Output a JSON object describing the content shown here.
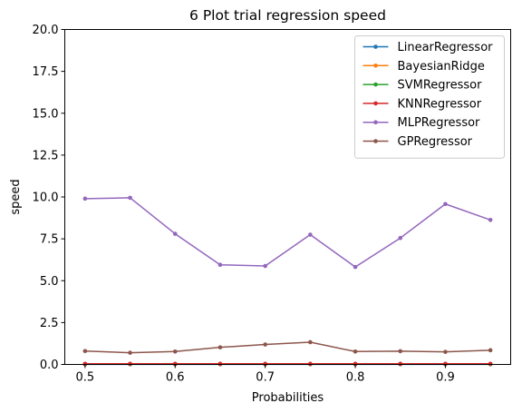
{
  "chart_data": {
    "type": "line",
    "title": "6 Plot trial regression speed",
    "xlabel": "Probabilities",
    "ylabel": "speed",
    "xlim": [
      0.4775,
      0.9725
    ],
    "ylim": [
      0,
      20
    ],
    "xticks": [
      0.5,
      0.6,
      0.7,
      0.8,
      0.9
    ],
    "xtick_labels": [
      "0.5",
      "0.6",
      "0.7",
      "0.8",
      "0.9"
    ],
    "yticks": [
      0,
      2.5,
      5,
      7.5,
      10,
      12.5,
      15,
      17.5,
      20
    ],
    "ytick_labels": [
      "0.0",
      "2.5",
      "5.0",
      "7.5",
      "10.0",
      "12.5",
      "15.0",
      "17.5",
      "20.0"
    ],
    "grid": false,
    "legend_position": "top-right",
    "x": [
      0.5,
      0.55,
      0.6,
      0.65,
      0.7,
      0.75,
      0.8,
      0.85,
      0.9,
      0.95
    ],
    "series": [
      {
        "name": "LinearRegressor",
        "color": "#1f77b4",
        "values": [
          0.01,
          0.01,
          0.01,
          0.01,
          0.01,
          0.01,
          0.01,
          0.01,
          0.01,
          0.01
        ]
      },
      {
        "name": "BayesianRidge",
        "color": "#ff7f0e",
        "values": [
          0.02,
          0.02,
          0.02,
          0.02,
          0.02,
          0.02,
          0.02,
          0.02,
          0.02,
          0.02
        ]
      },
      {
        "name": "SVMRegressor",
        "color": "#2ca02c",
        "values": [
          0.03,
          0.03,
          0.03,
          0.03,
          0.03,
          0.03,
          0.03,
          0.03,
          0.03,
          0.03
        ]
      },
      {
        "name": "KNNRegressor",
        "color": "#d62728",
        "values": [
          0.04,
          0.04,
          0.04,
          0.04,
          0.04,
          0.04,
          0.04,
          0.04,
          0.04,
          0.04
        ]
      },
      {
        "name": "MLPRegressor",
        "color": "#9467bd",
        "values": [
          9.9,
          9.95,
          7.8,
          5.95,
          5.88,
          7.75,
          5.82,
          7.55,
          9.58,
          8.63
        ]
      },
      {
        "name": "GPRegressor",
        "color": "#8c564b",
        "values": [
          0.8,
          0.7,
          0.77,
          1.02,
          1.19,
          1.33,
          0.77,
          0.79,
          0.75,
          0.85
        ]
      }
    ]
  }
}
